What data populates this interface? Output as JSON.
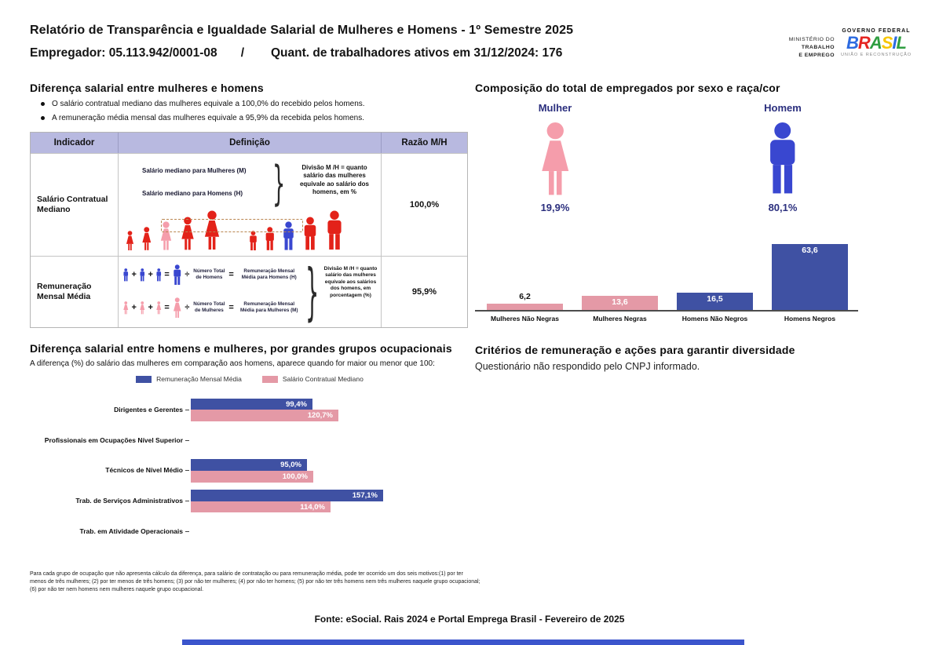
{
  "colors": {
    "bar_blue": "#3f51a3",
    "bar_pink": "#e499a6",
    "icon_red": "#e32219",
    "icon_pink": "#f59dab",
    "icon_blue": "#3947d0",
    "navy_text": "#2b2f7e",
    "table_header_bg": "#b8b9e0",
    "footer_bar_blue": "#3b55cc",
    "axis_gray": "#4d4d4d"
  },
  "header": {
    "title": "Relatório de Transparência e Igualdade Salarial de Mulheres e Homens - 1º Semestre 2025",
    "employer": "Empregador: 05.113.942/0001-08",
    "separator": "/",
    "active_workers": "Quant. de trabalhadores ativos em 31/12/2024: 176",
    "ministry_logo": {
      "line1": "MINISTÉRIO DO",
      "line2": "TRABALHO",
      "line3": "E EMPREGO"
    },
    "gov_logo": {
      "top": "GOVERNO FEDERAL",
      "word_letters": [
        {
          "ch": "B",
          "color": "#2d6be0"
        },
        {
          "ch": "R",
          "color": "#e52521"
        },
        {
          "ch": "A",
          "color": "#2f9e41"
        },
        {
          "ch": "S",
          "color": "#f7c600"
        },
        {
          "ch": "I",
          "color": "#2d6be0"
        },
        {
          "ch": "L",
          "color": "#2f9e41"
        }
      ],
      "bottom": "UNIÃO E RECONSTRUÇÃO"
    }
  },
  "salary_gap": {
    "title": "Diferença salarial entre mulheres e homens",
    "bullets": [
      "O salário contratual mediano das mulheres equivale a 100,0% do recebido pelos homens.",
      "A remuneração média mensal das mulheres equivale a 95,9% da recebida pelos homens."
    ],
    "table": {
      "headers": [
        "Indicador",
        "Definição",
        "Razão M/H"
      ],
      "row_median": {
        "indicator": "Salário Contratual Mediano",
        "label_women": "Salário mediano para Mulheres (M)",
        "label_men": "Salário mediano para Homens (H)",
        "note": "Divisão M /H = quanto salário das mulheres equivale ao salário dos homens, em %",
        "ratio": "100,0%",
        "icons": [
          {
            "sex": "female",
            "h": 26,
            "color": "icon_red"
          },
          {
            "sex": "female",
            "h": 31,
            "color": "icon_red"
          },
          {
            "sex": "female",
            "h": 38,
            "color": "icon_pink"
          },
          {
            "sex": "female",
            "h": 44,
            "color": "icon_red"
          },
          {
            "sex": "female",
            "h": 52,
            "color": "icon_red"
          },
          {
            "sex": "male",
            "h": 26,
            "color": "icon_red",
            "gap": true
          },
          {
            "sex": "male",
            "h": 31,
            "color": "icon_red"
          },
          {
            "sex": "male",
            "h": 38,
            "color": "icon_blue"
          },
          {
            "sex": "male",
            "h": 44,
            "color": "icon_red"
          },
          {
            "sex": "male",
            "h": 52,
            "color": "icon_red"
          }
        ]
      },
      "row_mean": {
        "indicator": "Remuneração Mensal Média",
        "plus": "+",
        "equals": "=",
        "divide": "÷",
        "men_divisor": "Número Total de Homens",
        "men_result": "Remuneração Mensal Média para Homens (H)",
        "women_divisor": "Número Total de Mulheres",
        "women_result": "Remuneração Mensal Média para Mulheres (M)",
        "note": "Divisão M /H = quanto salário das mulheres equivale aos salários dos homens, em porcentagem (%)",
        "ratio": "95,9%"
      }
    }
  },
  "occupational": {
    "title": "Diferença salarial entre homens e mulheres, por grandes grupos ocupacionais",
    "subtitle": "A diferença (%) do salário das mulheres em comparação aos homens, aparece quando for maior ou menor que 100:",
    "legend": [
      {
        "label": "Remuneração Mensal Média",
        "color": "bar_blue"
      },
      {
        "label": "Salário Contratual Mediano",
        "color": "bar_pink"
      }
    ],
    "rows": [
      {
        "label": "Dirigentes e Gerentes",
        "mean": 99.4,
        "mean_display": "99,4%",
        "median": 120.7,
        "median_display": "120,7%"
      },
      {
        "label": "Profissionais em Ocupações Nível Superior"
      },
      {
        "label": "Técnicos de Nível Médio",
        "mean": 95.0,
        "mean_display": "95,0%",
        "median": 100.0,
        "median_display": "100,0%"
      },
      {
        "label": "Trab. de Serviços Administrativos",
        "mean": 157.1,
        "mean_display": "157,1%",
        "median": 114.0,
        "median_display": "114,0%"
      },
      {
        "label": "Trab. em Atividade Operacionais"
      }
    ]
  },
  "composition": {
    "title": "Composição do total de empregados por sexo e raça/cor",
    "female_label": "Mulher",
    "female_pct": "19,9%",
    "male_label": "Homem",
    "male_pct": "80,1%",
    "bars": [
      {
        "label": "Mulheres Não Negras",
        "value": 6.2,
        "display": "6,2",
        "color": "bar_pink",
        "label_pos": "above"
      },
      {
        "label": "Mulheres Negras",
        "value": 13.6,
        "display": "13,6",
        "color": "bar_pink",
        "label_pos": "inside"
      },
      {
        "label": "Homens Não Negros",
        "value": 16.5,
        "display": "16,5",
        "color": "bar_blue",
        "label_pos": "inside"
      },
      {
        "label": "Homens Negros",
        "value": 63.6,
        "display": "63,6",
        "color": "bar_blue",
        "label_pos": "inside"
      }
    ]
  },
  "criteria": {
    "title": "Critérios de remuneração e ações para garantir diversidade",
    "text": "Questionário não respondido pelo CNPJ informado."
  },
  "footnote": "Para cada grupo de ocupação que não apresenta cálculo da diferença, para salário de contratação ou para remuneração média, pode ter ocorrido um dos seis motivos:(1) por ter menos de três mulheres; (2) por ter menos de três homens; (3) por não ter mulheres; (4) por não ter homens; (5) por não ter três homens nem três mulheres naquele grupo ocupacional; (6) por não ter nem homens nem mulheres naquele grupo ocupacional.",
  "footer": "Fonte: eSocial. Rais 2024 e Portal Emprega Brasil - Fevereiro de 2025",
  "chart_data": [
    {
      "type": "bar",
      "title": "Composição do total de empregados por sexo e raça/cor",
      "categories": [
        "Mulheres Não Negras",
        "Mulheres Negras",
        "Homens Não Negros",
        "Homens Negros"
      ],
      "values": [
        6.2,
        13.6,
        16.5,
        63.6
      ],
      "data_labels": [
        "6,2",
        "13,6",
        "16,5",
        "63,6"
      ],
      "bar_colors": [
        "#e499a6",
        "#e499a6",
        "#3f51a3",
        "#3f51a3"
      ],
      "extra": {
        "Mulher_pct": 19.9,
        "Homem_pct": 80.1
      },
      "xlabel": "",
      "ylabel": "",
      "ylim": [
        0,
        70
      ],
      "grid": false,
      "legend": "none"
    },
    {
      "type": "bar",
      "orientation": "horizontal",
      "title": "Diferença salarial entre homens e mulheres, por grandes grupos ocupacionais",
      "categories": [
        "Dirigentes e Gerentes",
        "Profissionais em Ocupações Nível Superior",
        "Técnicos de Nível Médio",
        "Trab. de Serviços Administrativos",
        "Trab. em Atividade Operacionais"
      ],
      "series": [
        {
          "name": "Remuneração Mensal Média",
          "color": "#3f51a3",
          "values": [
            99.4,
            null,
            95.0,
            157.1,
            null
          ]
        },
        {
          "name": "Salário Contratual Mediano",
          "color": "#e499a6",
          "values": [
            120.7,
            null,
            100.0,
            114.0,
            null
          ]
        }
      ],
      "xlim": [
        0,
        170
      ],
      "grid": false,
      "legend": "top-center"
    }
  ]
}
